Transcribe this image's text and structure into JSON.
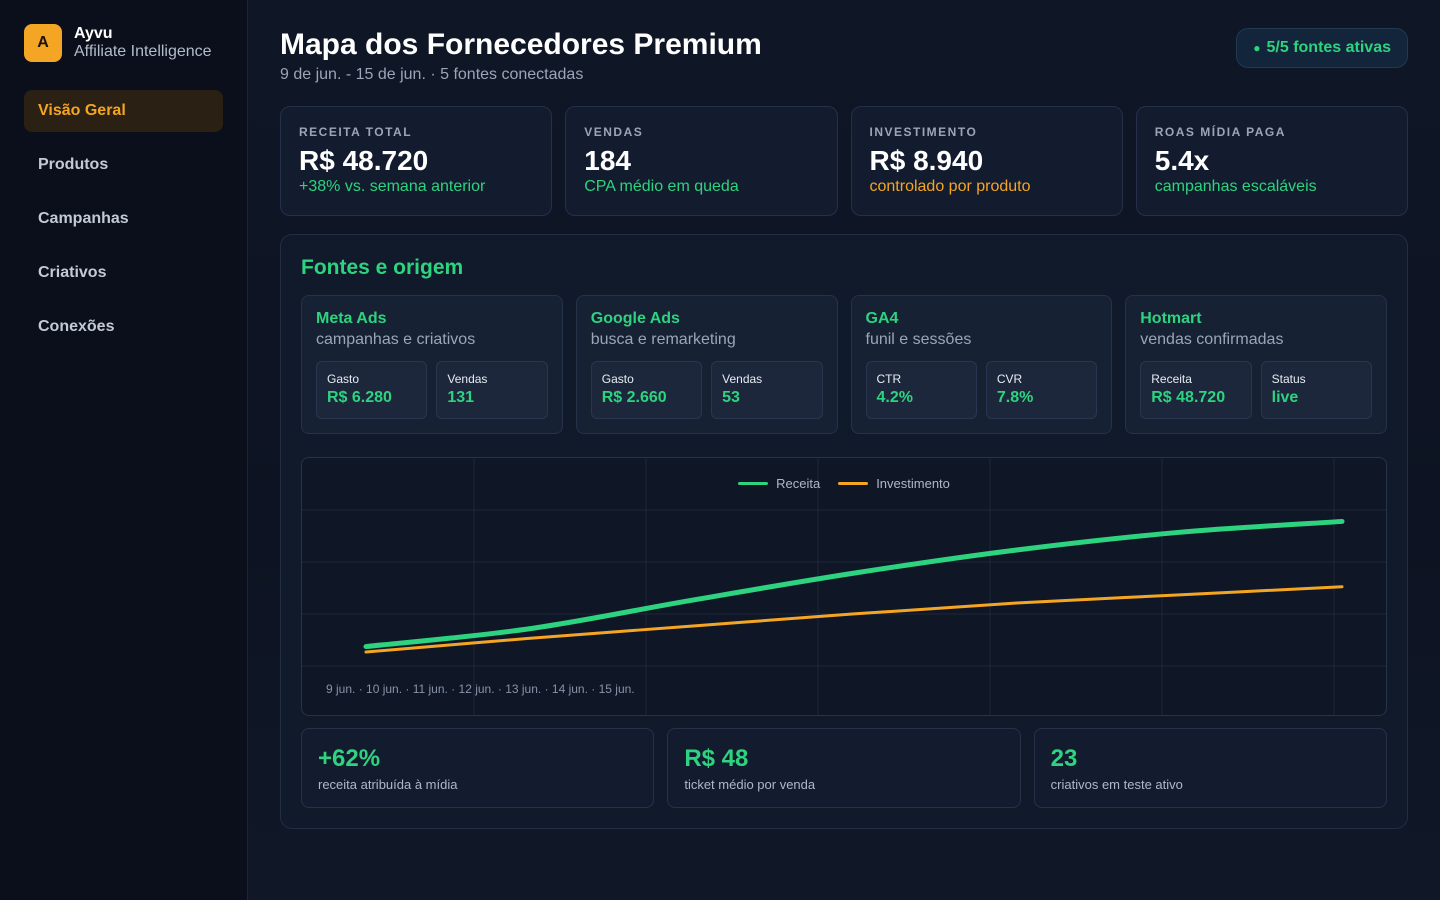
{
  "brand": {
    "logo_letter": "A",
    "name": "Ayvu",
    "subtitle": "Affiliate Intelligence"
  },
  "nav": {
    "items": [
      {
        "label": "Visão Geral",
        "active": true
      },
      {
        "label": "Produtos",
        "active": false
      },
      {
        "label": "Campanhas",
        "active": false
      },
      {
        "label": "Criativos",
        "active": false
      },
      {
        "label": "Conexões",
        "active": false
      }
    ]
  },
  "header": {
    "title": "Mapa dos Fornecedores Premium",
    "subtitle": "9 de jun. - 15 de jun. · 5 fontes conectadas",
    "status_dot": "●",
    "status": "5/5 fontes ativas"
  },
  "kpis": [
    {
      "label": "RECEITA TOTAL",
      "value": "R$ 48.720",
      "note": "+38% vs. semana anterior",
      "note_color": "green"
    },
    {
      "label": "VENDAS",
      "value": "184",
      "note": "CPA médio em queda",
      "note_color": "green"
    },
    {
      "label": "INVESTIMENTO",
      "value": "R$ 8.940",
      "note": "controlado por produto",
      "note_color": "orange"
    },
    {
      "label": "ROAS MÍDIA PAGA",
      "value": "5.4x",
      "note": "campanhas escaláveis",
      "note_color": "green"
    }
  ],
  "panel": {
    "title": "Fontes e origem",
    "sources": [
      {
        "name": "Meta Ads",
        "desc": "campanhas e criativos",
        "metrics": [
          {
            "label": "Gasto",
            "value": "R$ 6.280"
          },
          {
            "label": "Vendas",
            "value": "131"
          }
        ]
      },
      {
        "name": "Google Ads",
        "desc": "busca e remarketing",
        "metrics": [
          {
            "label": "Gasto",
            "value": "R$ 2.660"
          },
          {
            "label": "Vendas",
            "value": "53"
          }
        ]
      },
      {
        "name": "GA4",
        "desc": "funil e sessões",
        "metrics": [
          {
            "label": "CTR",
            "value": "4.2%"
          },
          {
            "label": "CVR",
            "value": "7.8%"
          }
        ]
      },
      {
        "name": "Hotmart",
        "desc": "vendas confirmadas",
        "metrics": [
          {
            "label": "Receita",
            "value": "R$ 48.720"
          },
          {
            "label": "Status",
            "value": "live"
          }
        ]
      }
    ],
    "stats": [
      {
        "value": "+62%",
        "label": "receita atribuída à mídia"
      },
      {
        "value": "R$ 48",
        "label": "ticket médio por venda"
      },
      {
        "value": "23",
        "label": "criativos em teste ativo"
      }
    ]
  },
  "chart_data": {
    "type": "line",
    "x_labels_text": "9 jun. · 10 jun. · 11 jun. · 12 jun. · 13 jun. · 14 jun. · 15 jun.",
    "categories": [
      "9 jun.",
      "10 jun.",
      "11 jun.",
      "12 jun.",
      "13 jun.",
      "14 jun.",
      "15 jun."
    ],
    "series": [
      {
        "name": "Receita",
        "color": "#2dd37f",
        "values": [
          0.04,
          0.17,
          0.38,
          0.58,
          0.75,
          0.88,
          0.96
        ]
      },
      {
        "name": "Investimento",
        "color": "#f5a524",
        "values": [
          0.0,
          0.1,
          0.19,
          0.28,
          0.36,
          0.42,
          0.48
        ]
      }
    ],
    "ylim": [
      0,
      1
    ],
    "grid": true,
    "legend": "top-center"
  }
}
